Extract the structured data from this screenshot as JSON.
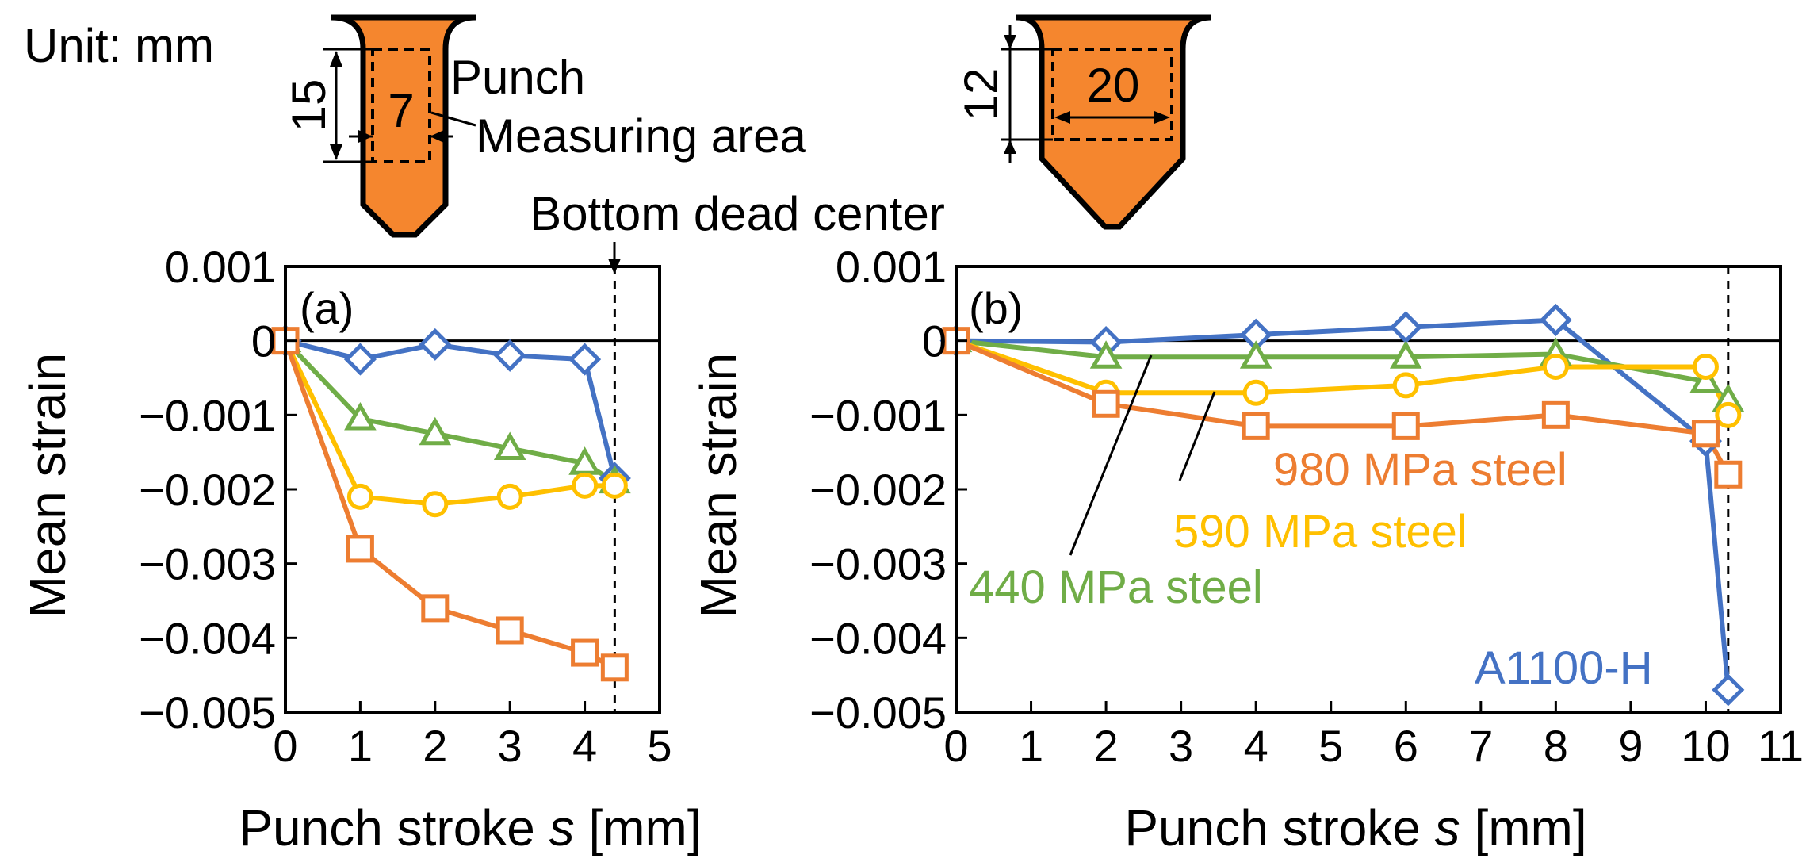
{
  "figure": {
    "unit_label": "Unit: mm",
    "punch_label": "Punch",
    "measuring_area_label": "Measuring area",
    "bottom_dead_center_label": "Bottom dead center",
    "dims": {
      "left_height": "15",
      "left_width": "7",
      "right_height": "12",
      "right_width": "20"
    }
  },
  "colors": {
    "punch": "#f5862e",
    "a1100": "#4472c4",
    "s440": "#70ad47",
    "s590": "#ffc000",
    "s980": "#ed7d31"
  },
  "chart_data": [
    {
      "type": "line",
      "panel_label": "(a)",
      "xlabel": "Punch stroke",
      "xlabel_var": "s",
      "xlabel_unit": "[mm]",
      "ylabel": "Mean strain",
      "xlim": [
        0,
        5
      ],
      "ylim": [
        -0.005,
        0.001
      ],
      "xticks": [
        0,
        1,
        2,
        3,
        4,
        5
      ],
      "xtick_labels": [
        "0",
        "1",
        "2",
        "3",
        "4",
        "5"
      ],
      "yticks": [
        0.001,
        0,
        -0.001,
        -0.002,
        -0.003,
        -0.004,
        -0.005
      ],
      "ytick_labels": [
        "0.001",
        "0",
        "−0.001",
        "−0.002",
        "−0.003",
        "−0.004",
        "−0.005"
      ],
      "bdc_x": 4.4,
      "series": [
        {
          "name": "A1100-H",
          "marker": "diamond",
          "color_key": "a1100",
          "x": [
            0,
            1,
            2,
            3,
            4,
            4.4
          ],
          "y": [
            0,
            -0.00025,
            -5e-05,
            -0.0002,
            -0.00025,
            -0.00185
          ]
        },
        {
          "name": "440 MPa steel",
          "marker": "triangle",
          "color_key": "s440",
          "x": [
            0,
            1,
            2,
            3,
            4,
            4.4
          ],
          "y": [
            0,
            -0.00105,
            -0.00125,
            -0.00145,
            -0.00165,
            -0.0019
          ]
        },
        {
          "name": "590 MPa steel",
          "marker": "circle",
          "color_key": "s590",
          "x": [
            0,
            1,
            2,
            3,
            4,
            4.4
          ],
          "y": [
            0,
            -0.0021,
            -0.0022,
            -0.0021,
            -0.00195,
            -0.00195
          ]
        },
        {
          "name": "980 MPa steel",
          "marker": "square",
          "color_key": "s980",
          "x": [
            0,
            1,
            2,
            3,
            4,
            4.4
          ],
          "y": [
            0,
            -0.0028,
            -0.0036,
            -0.0039,
            -0.0042,
            -0.0044
          ]
        }
      ]
    },
    {
      "type": "line",
      "panel_label": "(b)",
      "xlabel": "Punch stroke",
      "xlabel_var": "s",
      "xlabel_unit": "[mm]",
      "ylabel": "Mean strain",
      "xlim": [
        0,
        11
      ],
      "ylim": [
        -0.005,
        0.001
      ],
      "xticks": [
        0,
        1,
        2,
        3,
        4,
        5,
        6,
        7,
        8,
        9,
        10,
        11
      ],
      "xtick_labels": [
        "0",
        "1",
        "2",
        "3",
        "4",
        "5",
        "6",
        "7",
        "8",
        "9",
        "10",
        "11"
      ],
      "yticks": [
        0.001,
        0,
        -0.001,
        -0.002,
        -0.003,
        -0.004,
        -0.005
      ],
      "ytick_labels": [
        "0.001",
        "0",
        "−0.001",
        "−0.002",
        "−0.003",
        "−0.004",
        "−0.005"
      ],
      "bdc_x": 10.3,
      "series_labels": {
        "s980": "980 MPa steel",
        "s590": "590 MPa steel",
        "s440": "440 MPa steel",
        "a1100": "A1100-H"
      },
      "series": [
        {
          "name": "A1100-H",
          "marker": "diamond",
          "color_key": "a1100",
          "x": [
            0,
            2,
            4,
            6,
            8,
            10,
            10.3
          ],
          "y": [
            0,
            -2e-05,
            8e-05,
            0.00018,
            0.00028,
            -0.00135,
            -0.0047
          ]
        },
        {
          "name": "440 MPa steel",
          "marker": "triangle",
          "color_key": "s440",
          "x": [
            0,
            2,
            4,
            6,
            8,
            10,
            10.3
          ],
          "y": [
            0,
            -0.00022,
            -0.00022,
            -0.00022,
            -0.00018,
            -0.00055,
            -0.0008
          ]
        },
        {
          "name": "590 MPa steel",
          "marker": "circle",
          "color_key": "s590",
          "x": [
            0,
            2,
            4,
            6,
            8,
            10,
            10.3
          ],
          "y": [
            0,
            -0.0007,
            -0.0007,
            -0.0006,
            -0.00035,
            -0.00035,
            -0.001
          ]
        },
        {
          "name": "980 MPa steel",
          "marker": "square",
          "color_key": "s980",
          "x": [
            0,
            2,
            4,
            6,
            8,
            10,
            10.3
          ],
          "y": [
            0,
            -0.00085,
            -0.00115,
            -0.00115,
            -0.001,
            -0.00125,
            -0.0018
          ]
        }
      ]
    }
  ]
}
